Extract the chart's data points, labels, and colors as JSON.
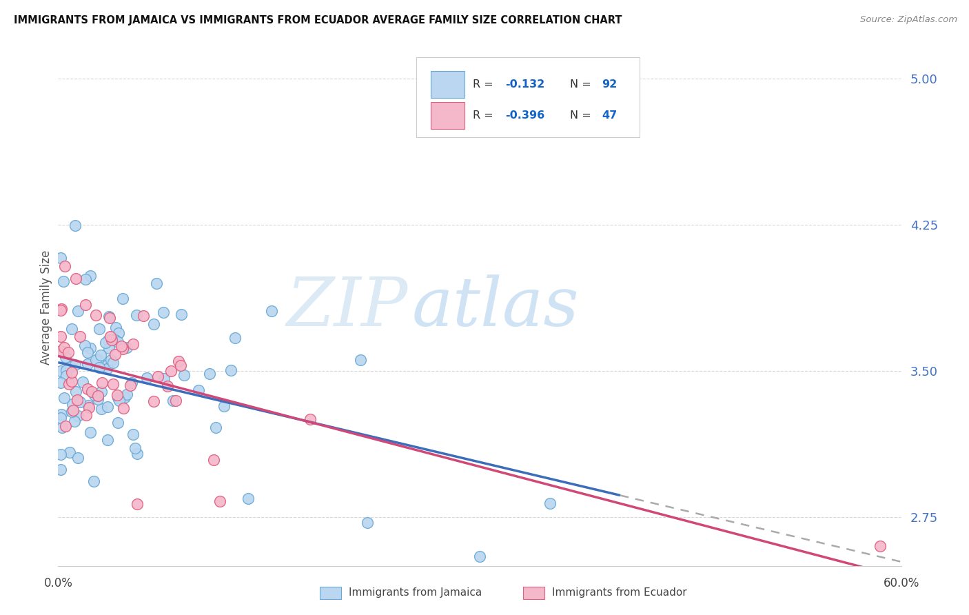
{
  "title": "IMMIGRANTS FROM JAMAICA VS IMMIGRANTS FROM ECUADOR AVERAGE FAMILY SIZE CORRELATION CHART",
  "source": "Source: ZipAtlas.com",
  "ylabel": "Average Family Size",
  "xlim": [
    0.0,
    0.6
  ],
  "ylim": [
    2.5,
    5.15
  ],
  "yticks": [
    2.75,
    3.5,
    4.25,
    5.0
  ],
  "xticks": [
    0.0,
    0.1,
    0.2,
    0.3,
    0.4,
    0.5,
    0.6
  ],
  "background_color": "#ffffff",
  "grid_color": "#d8d8d8",
  "right_axis_color": "#4472c4",
  "jamaica_color": "#bad6f0",
  "ecuador_color": "#f5b8cb",
  "jamaica_edge_color": "#6aaad6",
  "ecuador_edge_color": "#e06080",
  "jamaica_line_color": "#3b6dba",
  "ecuador_line_color": "#d04878",
  "dash_line_color": "#aaaaaa",
  "legend_text_color": "#333333",
  "legend_value_color": "#1464c8",
  "jamaica_R": -0.132,
  "jamaica_N": 92,
  "ecuador_R": -0.396,
  "ecuador_N": 47,
  "watermark_zip": "ZIP",
  "watermark_atlas": "atlas",
  "watermark_color": "#c8dff5",
  "blue_line_x_end": 0.4,
  "dash_line_x_start": 0.4
}
